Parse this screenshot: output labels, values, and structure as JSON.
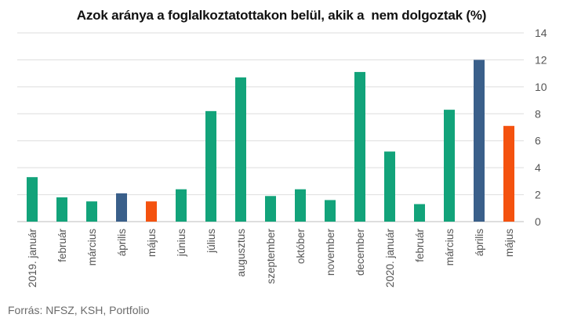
{
  "title": "Azok aránya a foglalkoztatottakon belül, akik a  nem dolgoztak (%)",
  "source": "Forrás: NFSZ, KSH, Portfolio",
  "colors": {
    "teal": "#12a37a",
    "blue": "#3a5f8a",
    "orange": "#f4520f",
    "grid": "#dedede",
    "axis_text": "#555555"
  },
  "chart_data": {
    "type": "bar",
    "title": "Azok aránya a foglalkoztatottakon belül, akik a  nem dolgoztak (%)",
    "xlabel": "",
    "ylabel": "",
    "ylim": [
      0,
      14
    ],
    "yticks": [
      0,
      2,
      4,
      6,
      8,
      10,
      12,
      14
    ],
    "grid": true,
    "y_axis_position": "right",
    "categories": [
      "2019. január",
      "február",
      "március",
      "április",
      "május",
      "június",
      "július",
      "augusztus",
      "szeptember",
      "október",
      "november",
      "december",
      "2020. január",
      "február",
      "március",
      "április",
      "május"
    ],
    "values": [
      3.3,
      1.8,
      1.5,
      2.1,
      1.5,
      2.4,
      8.2,
      10.7,
      1.9,
      2.4,
      1.6,
      11.1,
      5.2,
      1.3,
      8.3,
      12.0,
      7.1
    ],
    "bar_colors": [
      "teal",
      "teal",
      "teal",
      "blue",
      "orange",
      "teal",
      "teal",
      "teal",
      "teal",
      "teal",
      "teal",
      "teal",
      "teal",
      "teal",
      "teal",
      "blue",
      "orange"
    ]
  }
}
